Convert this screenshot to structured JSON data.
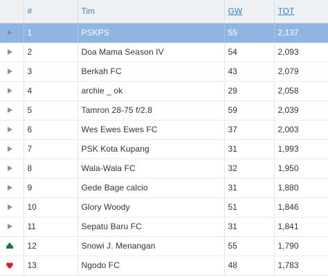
{
  "colors": {
    "header_link": "#2f7fc4",
    "highlight_row": "#8fb5e2",
    "same_icon": "#8a9199",
    "up_icon": "#1e7a3a",
    "down_icon": "#d21f2d"
  },
  "table": {
    "headers": {
      "rank": "#",
      "team": "Tim",
      "gw": "GW",
      "tot": "TOT"
    },
    "rows": [
      {
        "rank": "1",
        "team": "PSKPS",
        "gw": "55",
        "tot": "2,137",
        "movement": "same",
        "highlighted": true
      },
      {
        "rank": "2",
        "team": "Doa Mama Season IV",
        "gw": "54",
        "tot": "2,093",
        "movement": "same",
        "highlighted": false
      },
      {
        "rank": "3",
        "team": "Berkah FC",
        "gw": "43",
        "tot": "2,079",
        "movement": "same",
        "highlighted": false
      },
      {
        "rank": "4",
        "team": "archie _ ok",
        "gw": "29",
        "tot": "2,058",
        "movement": "same",
        "highlighted": false
      },
      {
        "rank": "5",
        "team": "Tamron 28-75 f/2.8",
        "gw": "59",
        "tot": "2,039",
        "movement": "same",
        "highlighted": false
      },
      {
        "rank": "6",
        "team": "Wes Ewes Ewes FC",
        "gw": "37",
        "tot": "2,003",
        "movement": "same",
        "highlighted": false
      },
      {
        "rank": "7",
        "team": "PSK Kota Kupang",
        "gw": "31",
        "tot": "1,993",
        "movement": "same",
        "highlighted": false
      },
      {
        "rank": "8",
        "team": "Wala-Wala FC",
        "gw": "32",
        "tot": "1,950",
        "movement": "same",
        "highlighted": false
      },
      {
        "rank": "9",
        "team": "Gede Bage calcio",
        "gw": "31",
        "tot": "1,880",
        "movement": "same",
        "highlighted": false
      },
      {
        "rank": "10",
        "team": "Glory Woody",
        "gw": "51",
        "tot": "1,846",
        "movement": "same",
        "highlighted": false
      },
      {
        "rank": "11",
        "team": "Sepatu Baru FC",
        "gw": "31",
        "tot": "1,841",
        "movement": "same",
        "highlighted": false
      },
      {
        "rank": "12",
        "team": "Snowi J. Menangan",
        "gw": "55",
        "tot": "1,790",
        "movement": "up",
        "highlighted": false
      },
      {
        "rank": "13",
        "team": "Ngodo FC",
        "gw": "48",
        "tot": "1,783",
        "movement": "down",
        "highlighted": false
      }
    ]
  }
}
